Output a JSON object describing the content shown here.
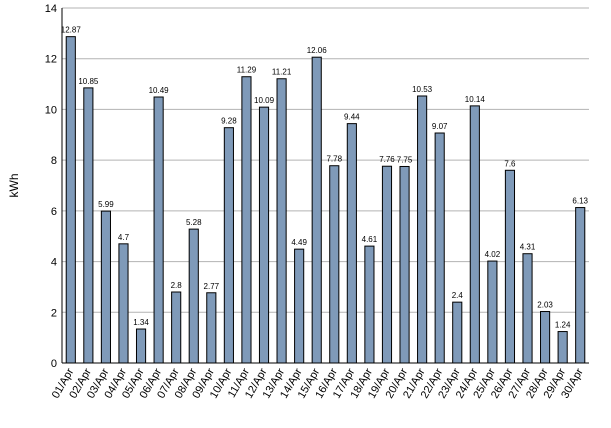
{
  "chart_data": {
    "type": "bar",
    "ylabel": "kWh",
    "xlabel": "",
    "title": "",
    "ylim": [
      0,
      14
    ],
    "yticks": [
      0,
      2,
      4,
      6,
      8,
      10,
      12,
      14
    ],
    "grid": true,
    "bar_color": "#7f9ab9",
    "bar_border_color": "#000000",
    "categories": [
      "01/Apr",
      "02/Apr",
      "03/Apr",
      "04/Apr",
      "05/Apr",
      "06/Apr",
      "07/Apr",
      "08/Apr",
      "09/Apr",
      "10/Apr",
      "11/Apr",
      "12/Apr",
      "13/Apr",
      "14/Apr",
      "15/Apr",
      "16/Apr",
      "17/Apr",
      "18/Apr",
      "19/Apr",
      "20/Apr",
      "21/Apr",
      "22/Apr",
      "23/Apr",
      "24/Apr",
      "25/Apr",
      "26/Apr",
      "27/Apr",
      "28/Apr",
      "29/Apr",
      "30/Apr"
    ],
    "values": [
      12.87,
      10.85,
      5.99,
      4.7,
      1.34,
      10.49,
      2.8,
      5.28,
      2.77,
      9.28,
      11.29,
      10.09,
      11.21,
      4.49,
      12.06,
      7.78,
      9.44,
      4.61,
      7.76,
      7.75,
      10.53,
      9.07,
      2.4,
      10.14,
      4.02,
      7.6,
      4.31,
      2.03,
      1.24,
      6.13
    ]
  }
}
